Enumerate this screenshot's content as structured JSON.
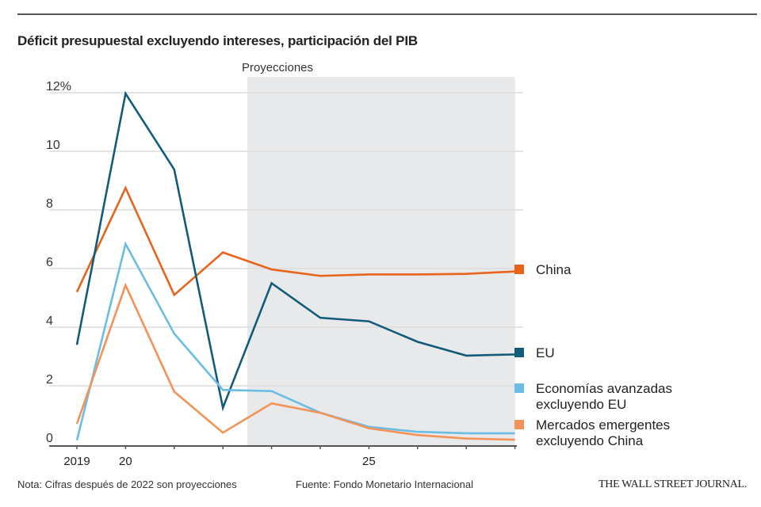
{
  "chart_data": {
    "type": "line",
    "title": "Déficit presupuestal excluyendo intereses, participación del PIB",
    "shaded_region_label": "Proyecciones",
    "shaded_region": [
      2022.5,
      2028
    ],
    "x": [
      2019,
      2020,
      2021,
      2022,
      2023,
      2024,
      2025,
      2026,
      2027,
      2028
    ],
    "xticks": [
      {
        "value": 2019,
        "label": "2019"
      },
      {
        "value": 2020,
        "label": "20"
      },
      {
        "value": 2025,
        "label": "25"
      }
    ],
    "yticks": [
      {
        "value": 0,
        "label": "0"
      },
      {
        "value": 2,
        "label": "2"
      },
      {
        "value": 4,
        "label": "4"
      },
      {
        "value": 6,
        "label": "6"
      },
      {
        "value": 8,
        "label": "8"
      },
      {
        "value": 10,
        "label": "10"
      },
      {
        "value": 12,
        "label": "12%"
      }
    ],
    "ylim": [
      0,
      12
    ],
    "xlabel": "",
    "ylabel": "",
    "grid": true,
    "legend": "right",
    "series": [
      {
        "name": "China",
        "color": "#e8641b",
        "values": [
          5.2,
          8.75,
          5.1,
          6.55,
          5.97,
          5.75,
          5.8,
          5.8,
          5.82,
          5.9
        ]
      },
      {
        "name": "EU",
        "color": "#135b7b",
        "values": [
          3.4,
          11.97,
          9.38,
          1.25,
          5.5,
          4.32,
          4.2,
          3.5,
          3.03,
          3.07
        ]
      },
      {
        "name": "Economías avanzadas excluyendo EU",
        "color": "#6cbde3",
        "values": [
          0.14,
          6.84,
          3.78,
          1.86,
          1.82,
          1.08,
          0.6,
          0.43,
          0.38,
          0.38
        ]
      },
      {
        "name": "Mercados emergentes excluyendo China",
        "color": "#f39358",
        "values": [
          0.7,
          5.43,
          1.8,
          0.4,
          1.4,
          1.08,
          0.55,
          0.32,
          0.2,
          0.16
        ]
      }
    ],
    "legend_lines": [
      [
        "China"
      ],
      [
        "EU"
      ],
      [
        "Economías avanzadas",
        "excluyendo EU"
      ],
      [
        "Mercados emergentes",
        "excluyendo China"
      ]
    ]
  },
  "footer": {
    "note": "Nota: Cifras después de 2022 son proyecciones",
    "source": "Fuente: Fondo Monetario Internacional",
    "publisher": "THE WALL STREET JOURNAL."
  }
}
